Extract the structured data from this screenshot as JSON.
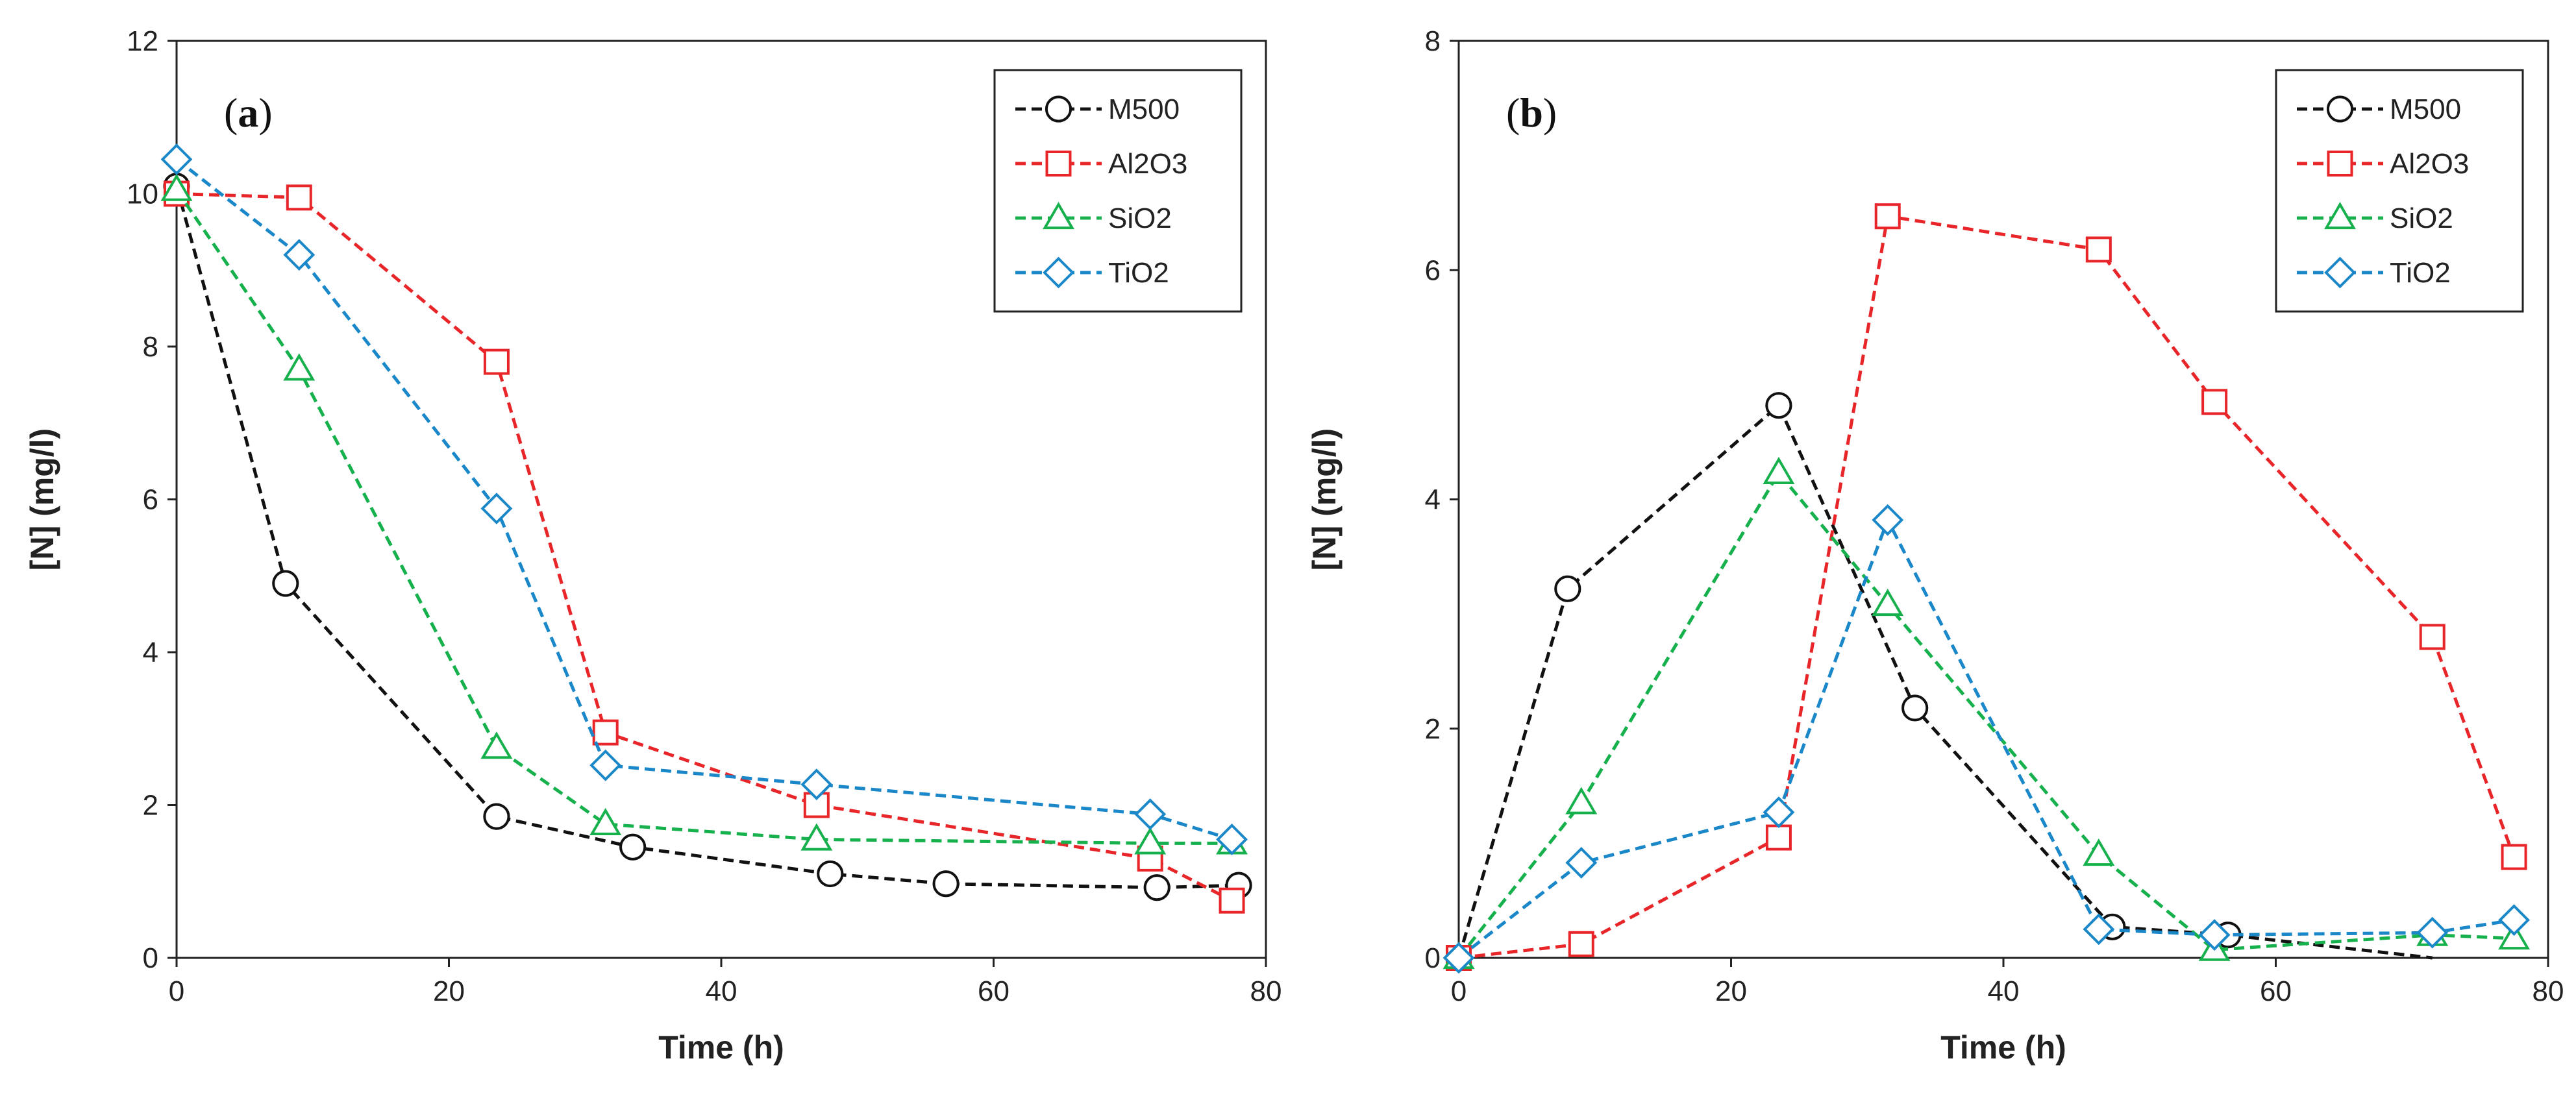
{
  "chart_data": [
    {
      "type": "line",
      "panel_label": "a",
      "xlabel": "Time (h)",
      "ylabel": "[N] (mg/l)",
      "xlim": [
        0,
        80
      ],
      "ylim": [
        0,
        12
      ],
      "xticks": [
        0,
        20,
        40,
        60,
        80
      ],
      "yticks": [
        0,
        2,
        4,
        6,
        8,
        10,
        12
      ],
      "grid": false,
      "legend_position": "top-right",
      "series": [
        {
          "name": "M500",
          "color": "#111111",
          "marker": "circle",
          "x": [
            0,
            8,
            23.5,
            33.5,
            48,
            56.5,
            72,
            78
          ],
          "y": [
            10.1,
            4.9,
            1.85,
            1.45,
            1.1,
            0.97,
            0.92,
            0.95
          ]
        },
        {
          "name": "Al2O3",
          "color": "#e8262a",
          "marker": "square",
          "x": [
            0,
            9,
            23.5,
            31.5,
            47,
            71.5,
            77.5
          ],
          "y": [
            10.0,
            9.95,
            7.8,
            2.95,
            2.0,
            1.3,
            0.75
          ]
        },
        {
          "name": "SiO2",
          "color": "#16b04c",
          "marker": "triangle",
          "x": [
            0,
            9,
            23.5,
            31.5,
            47,
            71.5,
            77.5
          ],
          "y": [
            10.05,
            7.7,
            2.75,
            1.75,
            1.55,
            1.5,
            1.5
          ]
        },
        {
          "name": "TiO2",
          "color": "#1a87c9",
          "marker": "diamond",
          "x": [
            0,
            9,
            23.5,
            31.5,
            47,
            71.5,
            77.5
          ],
          "y": [
            10.45,
            9.2,
            5.88,
            2.52,
            2.27,
            1.88,
            1.55
          ]
        }
      ]
    },
    {
      "type": "line",
      "panel_label": "b",
      "xlabel": "Time (h)",
      "ylabel": "[N] (mg/l)",
      "xlim": [
        0,
        80
      ],
      "ylim": [
        0,
        8
      ],
      "xticks": [
        0,
        20,
        40,
        60,
        80
      ],
      "yticks": [
        0,
        2,
        4,
        6,
        8
      ],
      "grid": false,
      "legend_position": "top-right",
      "series": [
        {
          "name": "M500",
          "color": "#111111",
          "marker": "circle",
          "x": [
            0,
            8,
            23.5,
            33.5,
            48,
            56.5,
            71.5
          ],
          "y": [
            0,
            3.22,
            4.82,
            2.18,
            0.27,
            0.2,
            0
          ],
          "marker_mask": [
            false,
            true,
            true,
            true,
            true,
            true,
            false
          ]
        },
        {
          "name": "Al2O3",
          "color": "#e8262a",
          "marker": "square",
          "x": [
            0,
            9,
            23.5,
            31.5,
            47,
            55.5,
            71.5,
            77.5
          ],
          "y": [
            0,
            0.12,
            1.05,
            6.47,
            6.18,
            4.85,
            2.8,
            0.88
          ]
        },
        {
          "name": "SiO2",
          "color": "#16b04c",
          "marker": "triangle",
          "x": [
            0,
            9,
            23.5,
            31.5,
            47,
            55.5,
            71.5,
            77.5
          ],
          "y": [
            0,
            1.35,
            4.23,
            3.08,
            0.9,
            0.07,
            0.2,
            0.17
          ]
        },
        {
          "name": "TiO2",
          "color": "#1a87c9",
          "marker": "diamond",
          "x": [
            0,
            9,
            23.5,
            31.5,
            47,
            55.5,
            71.5,
            77.5
          ],
          "y": [
            0,
            0.83,
            1.27,
            3.82,
            0.25,
            0.2,
            0.22,
            0.33
          ]
        }
      ]
    }
  ]
}
